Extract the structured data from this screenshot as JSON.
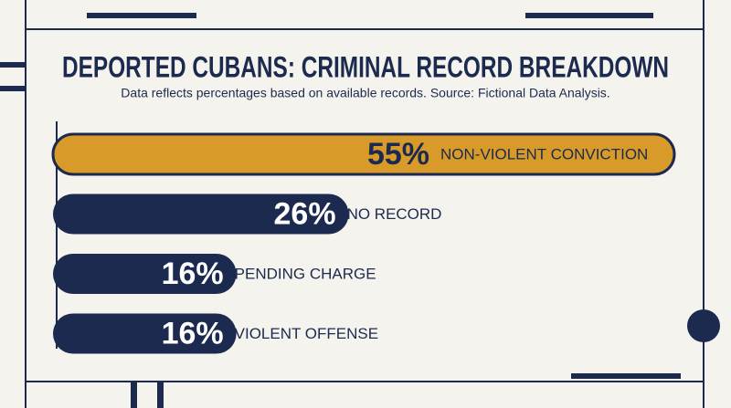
{
  "chart_data": {
    "type": "bar",
    "orientation": "horizontal",
    "title": "DEPORTED CUBANS: CRIMINAL RECORD BREAKDOWN",
    "subtitle": "Data reflects percentages based on available records. Source: Fictional Data Analysis.",
    "categories": [
      "NON-VIOLENT CONVICTION",
      "NO RECORD",
      "PENDING CHARGE",
      "VIOLENT OFFENSE"
    ],
    "values": [
      55,
      26,
      16,
      16
    ],
    "value_labels": [
      "55%",
      "26%",
      "16%",
      "16%"
    ],
    "colors": [
      "#d89b2a",
      "#1b2a4e",
      "#1b2a4e",
      "#1b2a4e"
    ]
  }
}
